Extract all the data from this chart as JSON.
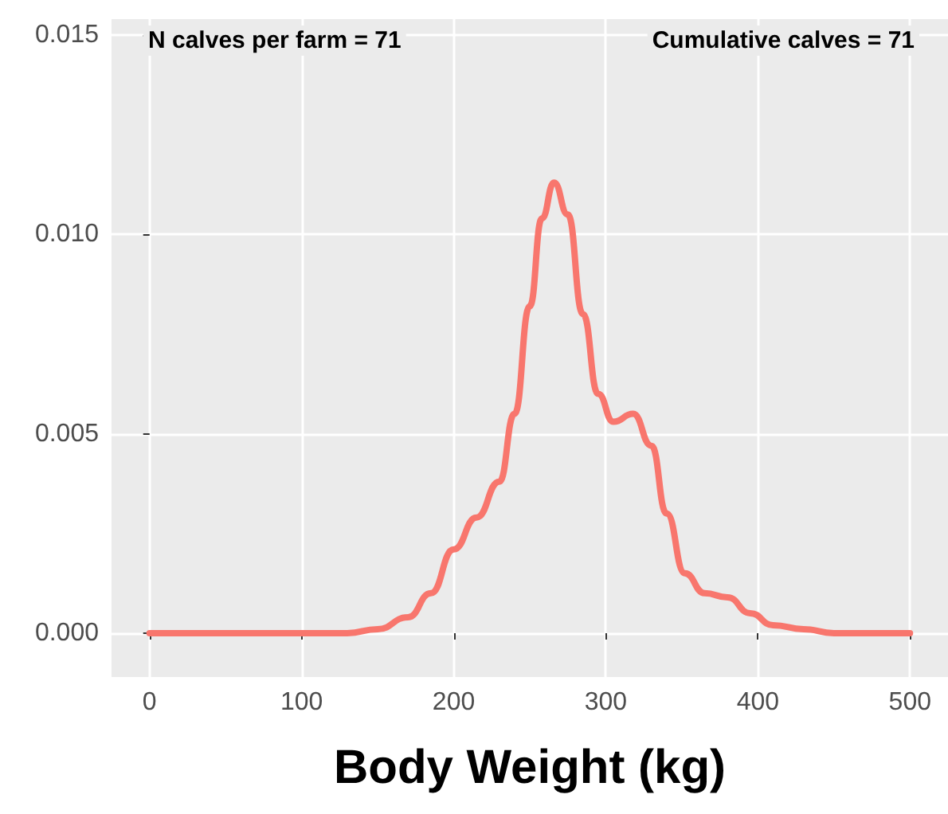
{
  "chart_data": {
    "type": "line",
    "xlabel": "Body Weight (kg)",
    "annotations": [
      "N calves per farm = 71",
      "Cumulative calves = 71"
    ],
    "x": [
      0,
      50,
      100,
      130,
      150,
      170,
      185,
      200,
      215,
      230,
      240,
      250,
      258,
      266,
      275,
      285,
      295,
      305,
      318,
      330,
      340,
      352,
      365,
      380,
      395,
      410,
      430,
      450,
      500
    ],
    "series": [
      {
        "color": "#f8766d",
        "values": [
          0,
          0,
          0,
          0,
          0.0001,
          0.0004,
          0.001,
          0.0021,
          0.0029,
          0.0038,
          0.0055,
          0.0082,
          0.0104,
          0.0113,
          0.0105,
          0.008,
          0.006,
          0.0053,
          0.0055,
          0.0047,
          0.003,
          0.0015,
          0.001,
          0.0009,
          0.0005,
          0.0002,
          0.0001,
          0,
          0
        ]
      }
    ],
    "xlim": [
      -25,
      525
    ],
    "xticks": [
      0,
      100,
      200,
      300,
      400,
      500
    ],
    "ylim": [
      -0.0011,
      0.0154
    ],
    "yticks": [
      {
        "value": 0,
        "label": "0.000"
      },
      {
        "value": 0.005,
        "label": "0.005"
      },
      {
        "value": 0.01,
        "label": "0.010"
      },
      {
        "value": 0.015,
        "label": "0.015"
      }
    ],
    "grid": true,
    "marker": "none",
    "line_style": "solid"
  }
}
